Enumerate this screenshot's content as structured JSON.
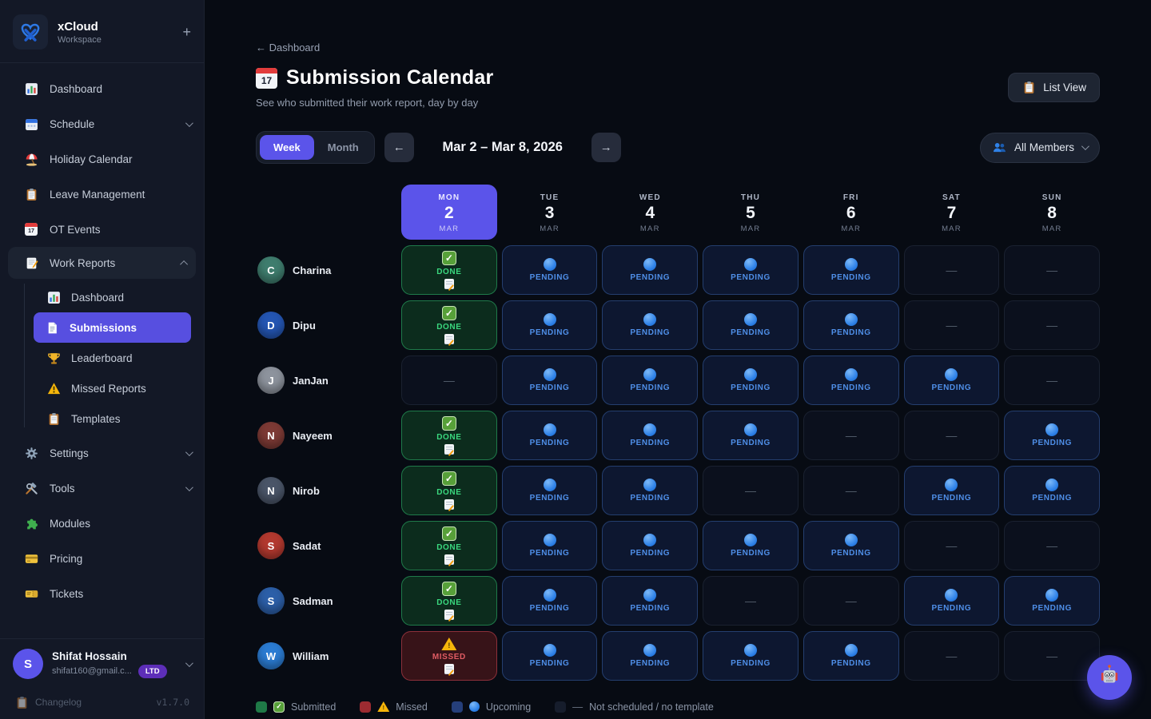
{
  "sidebar": {
    "logo": {
      "title": "xCloud",
      "subtitle": "Workspace",
      "plus": "+"
    },
    "items": [
      {
        "label": "Dashboard",
        "icon": "bar-chart-icon"
      },
      {
        "label": "Schedule",
        "icon": "calendar-icon"
      },
      {
        "label": "Holiday Calendar",
        "icon": "beach-umbrella-icon"
      },
      {
        "label": "Leave Management",
        "icon": "clipboard-icon"
      },
      {
        "label": "OT Events",
        "icon": "calendar-date-icon"
      },
      {
        "label": "Work Reports",
        "icon": "memo-icon",
        "children": [
          {
            "label": "Dashboard",
            "icon": "bar-chart-icon"
          },
          {
            "label": "Submissions",
            "icon": "document-icon"
          },
          {
            "label": "Leaderboard",
            "icon": "trophy-icon"
          },
          {
            "label": "Missed Reports",
            "icon": "warning-icon"
          },
          {
            "label": "Templates",
            "icon": "clipboard-icon"
          }
        ]
      },
      {
        "label": "Settings",
        "icon": "gear-icon"
      },
      {
        "label": "Tools",
        "icon": "tools-icon"
      },
      {
        "label": "Modules",
        "icon": "puzzle-icon"
      },
      {
        "label": "Pricing",
        "icon": "credit-card-icon"
      },
      {
        "label": "Tickets",
        "icon": "ticket-icon"
      }
    ],
    "profile": {
      "initial": "S",
      "name": "Shifat Hossain",
      "email": "shifat160@gmail.c...",
      "badge": "LTD"
    },
    "footer": {
      "changelog": "Changelog",
      "version": "v1.7.0"
    }
  },
  "header": {
    "back": "← Dashboard",
    "title": "Submission Calendar",
    "calendar_icon_day": "17",
    "subtitle": "See who submitted their work report, day by day",
    "list_view": "List View"
  },
  "toolbar": {
    "week": "Week",
    "month": "Month",
    "prev": "←",
    "next": "→",
    "range": "Mar 2 – Mar 8, 2026",
    "members_filter": "All Members"
  },
  "calendar": {
    "days": [
      {
        "dow": "MON",
        "date": "2",
        "month": "MAR",
        "active": true
      },
      {
        "dow": "TUE",
        "date": "3",
        "month": "MAR",
        "active": false
      },
      {
        "dow": "WED",
        "date": "4",
        "month": "MAR",
        "active": false
      },
      {
        "dow": "THU",
        "date": "5",
        "month": "MAR",
        "active": false
      },
      {
        "dow": "FRI",
        "date": "6",
        "month": "MAR",
        "active": false
      },
      {
        "dow": "SAT",
        "date": "7",
        "month": "MAR",
        "active": false
      },
      {
        "dow": "SUN",
        "date": "8",
        "month": "MAR",
        "active": false
      }
    ],
    "cell_labels": {
      "done": "DONE",
      "pending": "PENDING",
      "missed": "MISSED",
      "none": "—"
    },
    "members": [
      {
        "name": "Charina",
        "avatar_color": "#3f7d6e",
        "cells": [
          "done",
          "pending",
          "pending",
          "pending",
          "pending",
          "none",
          "none"
        ]
      },
      {
        "name": "Dipu",
        "avatar_color": "#2456b3",
        "cells": [
          "done",
          "pending",
          "pending",
          "pending",
          "pending",
          "none",
          "none"
        ]
      },
      {
        "name": "JanJan",
        "avatar_color": "#8d939d",
        "cells": [
          "none",
          "pending",
          "pending",
          "pending",
          "pending",
          "pending",
          "none"
        ]
      },
      {
        "name": "Nayeem",
        "avatar_color": "#7d3a35",
        "cells": [
          "done",
          "pending",
          "pending",
          "pending",
          "none",
          "none",
          "pending"
        ]
      },
      {
        "name": "Nirob",
        "avatar_color": "#4a5568",
        "cells": [
          "done",
          "pending",
          "pending",
          "none",
          "none",
          "pending",
          "pending"
        ]
      },
      {
        "name": "Sadat",
        "avatar_color": "#b3392f",
        "cells": [
          "done",
          "pending",
          "pending",
          "pending",
          "pending",
          "none",
          "none"
        ]
      },
      {
        "name": "Sadman",
        "avatar_color": "#2c5fa8",
        "cells": [
          "done",
          "pending",
          "pending",
          "none",
          "none",
          "pending",
          "pending"
        ]
      },
      {
        "name": "William",
        "avatar_color": "#2b7cd3",
        "cells": [
          "missed",
          "pending",
          "pending",
          "pending",
          "pending",
          "none",
          "none"
        ]
      }
    ]
  },
  "legend": {
    "items": [
      {
        "kind": "submitted",
        "swatch": "#1f7a47",
        "label": "Submitted"
      },
      {
        "kind": "missed",
        "swatch": "#9c2b31",
        "label": "Missed"
      },
      {
        "kind": "upcoming",
        "swatch": "#253f7a",
        "label": "Upcoming"
      },
      {
        "kind": "none",
        "swatch": "#161d2c",
        "label": "Not scheduled / no template"
      }
    ]
  },
  "glyphs": {
    "check": "✓",
    "dash": "—",
    "exclaim": "!"
  },
  "colors": {
    "accent": "#5b54ea",
    "done_border": "#1f7a4a",
    "pending_border": "#243e6e",
    "missed_border": "#8c303a",
    "sidebar_bg": "#131826",
    "main_bg": "#070b13"
  }
}
